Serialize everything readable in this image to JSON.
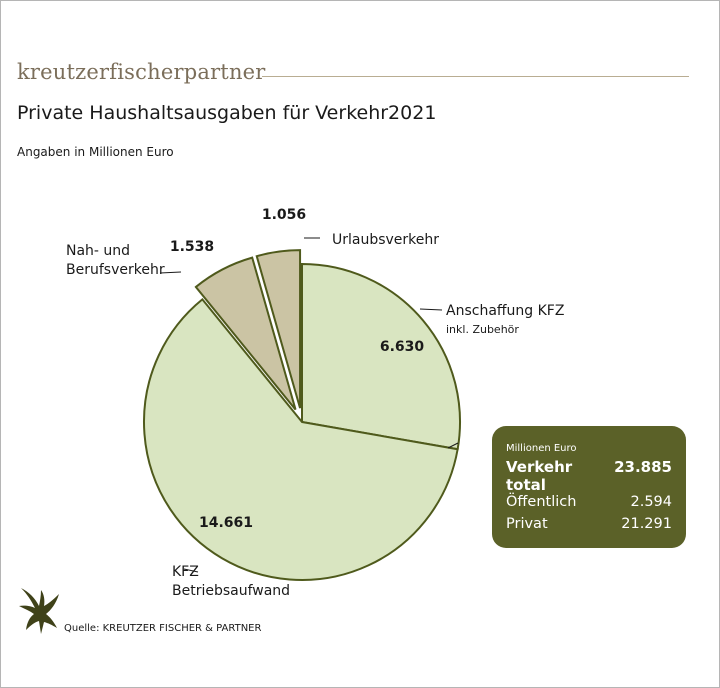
{
  "header": {
    "brand": "kreutzerfischerpartner",
    "title": "Private Haushaltsausgaben für Verkehr2021",
    "subtitle": "Angaben in Millionen Euro"
  },
  "chart_data": {
    "type": "pie",
    "title": "Private Haushaltsausgaben für Verkehr2021",
    "unit_note": "Angaben in Millionen Euro",
    "slices": [
      {
        "label": "Anschaffung KFZ",
        "sublabel": "inkl. Zubehör",
        "value": 6630,
        "display": "6.630",
        "color": "#d9e5c1",
        "exploded": false
      },
      {
        "label": "KFZ Betriebsaufwand",
        "value": 14661,
        "display": "14.661",
        "color": "#d9e5c1",
        "exploded": false
      },
      {
        "label": "Nah- und Berufsverkehr",
        "value": 1538,
        "display": "1.538",
        "color": "#cbc4a4",
        "exploded": true
      },
      {
        "label": "Urlaubsverkehr",
        "value": 1056,
        "display": "1.056",
        "color": "#cbc4a4",
        "exploded": true
      }
    ],
    "slice_outline_color": "#4f5a1c"
  },
  "totals": {
    "header": "Millionen Euro",
    "total_label": "Verkehr total",
    "total_value": "23.885",
    "public_label": "Öffentlich",
    "public_value": "2.594",
    "private_label": "Privat",
    "private_value": "21.291",
    "background": "#5b6128"
  },
  "footer": {
    "source": "Quelle: KREUTZER FISCHER & PARTNER",
    "logo": "eagle-icon"
  }
}
